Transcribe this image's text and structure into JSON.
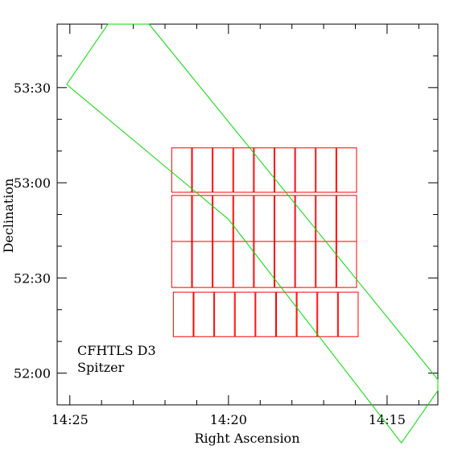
{
  "chart_data": {
    "type": "scatter",
    "title": "",
    "xlabel": "Right Ascension",
    "ylabel": "Declination",
    "x_axis": {
      "unit": "hh:mm (RA)",
      "range_minutes": [
        865.4,
        853.4
      ],
      "ticks": [
        {
          "value": 865,
          "label": "14:25"
        },
        {
          "value": 860,
          "label": "14:20"
        },
        {
          "value": 855,
          "label": "14:15"
        }
      ]
    },
    "y_axis": {
      "unit": "deg:arcmin (Dec)",
      "range_degrees": [
        51.8333,
        53.8333
      ],
      "ticks": [
        {
          "value": 53.5,
          "label": "53:30"
        },
        {
          "value": 53.0,
          "label": "53:00"
        },
        {
          "value": 52.5,
          "label": "52:30"
        },
        {
          "value": 52.0,
          "label": "52:00"
        }
      ]
    },
    "grid": false,
    "legend_position": "bottom-left",
    "series": [
      {
        "name": "CFHTLS D3",
        "color": "#ff0000",
        "kind": "ccd-mosaic",
        "rows": [
          {
            "dec_top": 53.1833,
            "dec_bottom": 52.95,
            "ra_edges": [
              861.8,
              861.15,
              860.5,
              859.85,
              859.2,
              858.55,
              857.9,
              857.25,
              856.6,
              855.95
            ]
          },
          {
            "dec_top": 52.9333,
            "dec_bottom": 52.6917,
            "ra_edges": [
              861.8,
              861.15,
              860.5,
              859.85,
              859.2,
              858.55,
              857.9,
              857.25,
              856.6,
              855.95
            ]
          },
          {
            "dec_top": 52.6917,
            "dec_bottom": 52.45,
            "ra_edges": [
              861.8,
              861.15,
              860.5,
              859.85,
              859.2,
              858.55,
              857.9,
              857.25,
              856.6,
              855.95
            ]
          },
          {
            "dec_top": 52.425,
            "dec_bottom": 52.1917,
            "ra_edges": [
              861.75,
              861.1,
              860.45,
              859.8,
              859.15,
              858.5,
              857.85,
              857.2,
              856.55,
              855.9
            ]
          }
        ]
      },
      {
        "name": "Spitzer",
        "color": "#00dd00",
        "kind": "footprint",
        "polygon": [
          {
            "ra": 865.1,
            "dec": 53.5167
          },
          {
            "ra": 863.8,
            "dec": 53.8333
          },
          {
            "ra": 862.5,
            "dec": 53.8333
          },
          {
            "ra": 853.4,
            "dec": 51.9667
          },
          {
            "ra": 853.4,
            "dec": 51.9083
          },
          {
            "ra": 854.55,
            "dec": 51.6333
          },
          {
            "ra": 860.0,
            "dec": 52.8083
          }
        ]
      }
    ]
  }
}
